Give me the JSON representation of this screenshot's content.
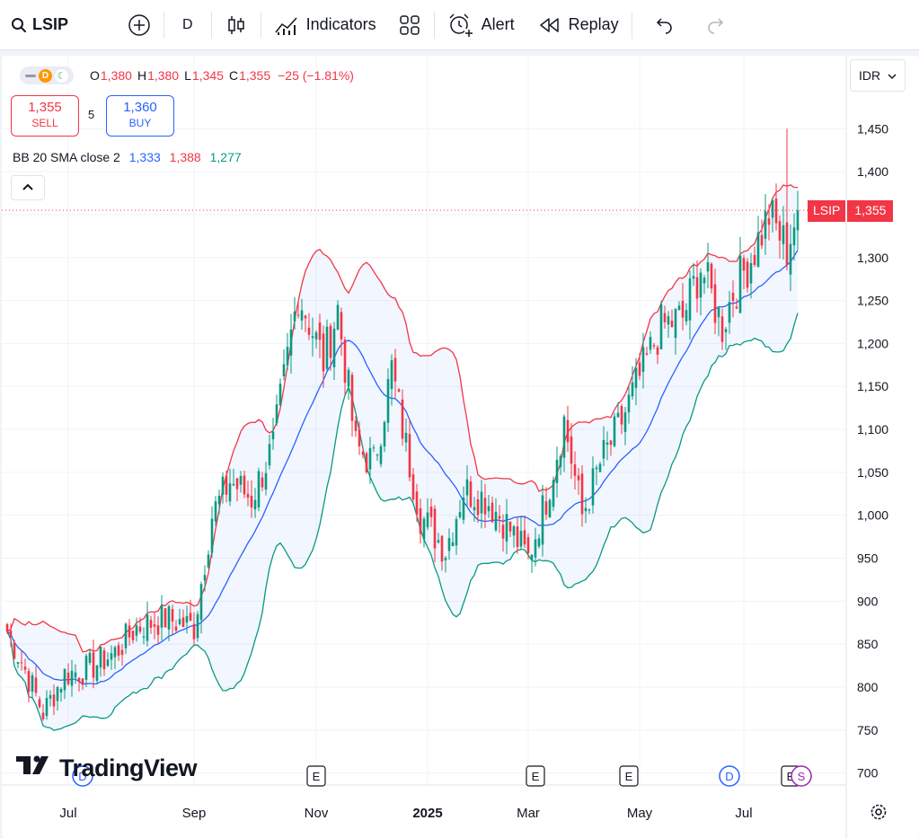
{
  "toolbar": {
    "symbol": "LSIP",
    "interval": "D",
    "indicators_label": "Indicators",
    "alert_label": "Alert",
    "replay_label": "Replay"
  },
  "legend": {
    "o_key": "O",
    "o_val": "1,380",
    "h_key": "H",
    "h_val": "1,380",
    "l_key": "L",
    "l_val": "1,345",
    "c_key": "C",
    "c_val": "1,355",
    "change": "−25 (−1.81%)"
  },
  "trade": {
    "sell_price": "1,355",
    "sell_label": "SELL",
    "spread": "5",
    "buy_price": "1,360",
    "buy_label": "BUY"
  },
  "bb_legend": {
    "name": "BB 20 SMA close 2",
    "basis": "1,333",
    "upper": "1,388",
    "lower": "1,277"
  },
  "currency": "IDR",
  "price_tag": {
    "symbol": "LSIP",
    "value": "1,355"
  },
  "watermark": "TradingView",
  "colors": {
    "up": "#089981",
    "down": "#f23645",
    "basis": "#2962ff",
    "upper": "#f23645",
    "lower": "#089981",
    "band_fill": "#2962ff",
    "earnings_badge": "#131722",
    "dividend_badge": "#2962ff",
    "split_badge": "#9c27b0"
  },
  "chart_data": {
    "type": "candlestick",
    "symbol": "LSIP",
    "interval": "D",
    "currency": "IDR",
    "y_ticks": [
      1450,
      1400,
      1350,
      1300,
      1250,
      1200,
      1150,
      1100,
      1050,
      1000,
      950,
      900,
      850,
      800,
      750,
      700
    ],
    "y_tick_labels": [
      "1,450",
      "1,400",
      "1,350",
      "1,300",
      "1,250",
      "1,200",
      "1,150",
      "1,100",
      "1,050",
      "1,000",
      "950",
      "900",
      "850",
      "800",
      "750",
      "700"
    ],
    "ylim": [
      686,
      1535
    ],
    "x_labels": [
      "Jul",
      "Sep",
      "Nov",
      "2025",
      "Mar",
      "May",
      "Jul"
    ],
    "x_label_bars": [
      17,
      52,
      86,
      117,
      145,
      176,
      205
    ],
    "total_bars": 221,
    "last_close": 1355,
    "indicator": {
      "name": "Bollinger Bands",
      "length": 20,
      "ma": "SMA",
      "source": "close",
      "mult": 2,
      "last_basis": 1333,
      "last_upper": 1388,
      "last_lower": 1277
    },
    "close_anchors": [
      [
        0,
        865
      ],
      [
        4,
        830
      ],
      [
        10,
        770
      ],
      [
        16,
        815
      ],
      [
        22,
        820
      ],
      [
        30,
        840
      ],
      [
        36,
        870
      ],
      [
        44,
        880
      ],
      [
        52,
        870
      ],
      [
        57,
        1000
      ],
      [
        62,
        1040
      ],
      [
        68,
        1020
      ],
      [
        74,
        1080
      ],
      [
        81,
        1260
      ],
      [
        88,
        1180
      ],
      [
        92,
        1240
      ],
      [
        97,
        1080
      ],
      [
        102,
        1060
      ],
      [
        107,
        1170
      ],
      [
        111,
        1080
      ],
      [
        115,
        1000
      ],
      [
        122,
        960
      ],
      [
        127,
        1030
      ],
      [
        133,
        1020
      ],
      [
        139,
        990
      ],
      [
        145,
        950
      ],
      [
        150,
        1020
      ],
      [
        155,
        1110
      ],
      [
        160,
        1000
      ],
      [
        165,
        1060
      ],
      [
        170,
        1100
      ],
      [
        176,
        1160
      ],
      [
        182,
        1220
      ],
      [
        188,
        1230
      ],
      [
        193,
        1290
      ],
      [
        199,
        1220
      ],
      [
        202,
        1260
      ],
      [
        207,
        1300
      ],
      [
        212,
        1350
      ],
      [
        217,
        1310
      ],
      [
        220,
        1355
      ]
    ],
    "spike": {
      "bar": 217,
      "high": 1450
    },
    "events": [
      {
        "type": "D",
        "bar": 21
      },
      {
        "type": "E",
        "bar": 86
      },
      {
        "type": "E",
        "bar": 147
      },
      {
        "type": "E",
        "bar": 173
      },
      {
        "type": "D",
        "bar": 201
      },
      {
        "type": "E",
        "bar": 218
      },
      {
        "type": "S",
        "bar": 221
      }
    ]
  }
}
